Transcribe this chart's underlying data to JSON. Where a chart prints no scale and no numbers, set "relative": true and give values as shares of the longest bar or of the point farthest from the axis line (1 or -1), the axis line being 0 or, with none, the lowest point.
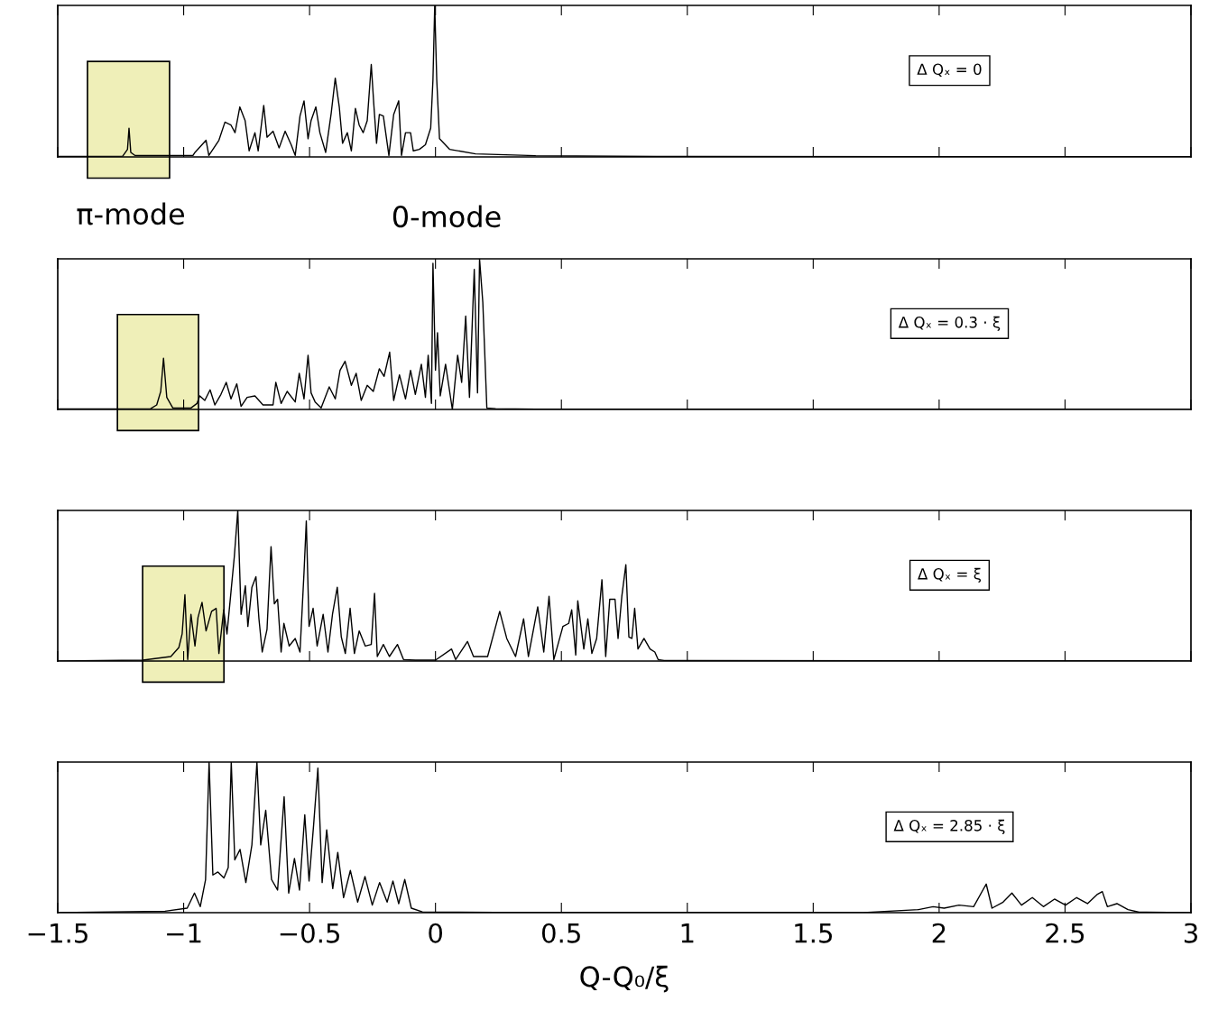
{
  "chart_data": [
    {
      "type": "line",
      "relative": true,
      "xlim": [
        -1.5,
        3
      ],
      "xticks": [
        -1.5,
        -1,
        -0.5,
        0,
        0.5,
        1,
        1.5,
        2,
        2.5,
        3
      ],
      "tick_labels": false,
      "grid": false,
      "legend": false,
      "annotations": [
        "Δ Qₓ = 0",
        "π-mode",
        "0-mode"
      ],
      "bands": [
        {
          "axis": "x",
          "from": -1.382,
          "to": -1.056,
          "color": "#efefb8"
        }
      ],
      "series": [
        {
          "color": "#000000",
          "x": [
            -1.5,
            -1.242,
            -1.223,
            -1.217,
            -1.21,
            -1.194,
            -0.963,
            -0.955,
            -0.911,
            -0.9,
            -0.86,
            -0.836,
            -0.812,
            -0.796,
            -0.777,
            -0.756,
            -0.74,
            -0.717,
            -0.704,
            -0.682,
            -0.669,
            -0.645,
            -0.621,
            -0.597,
            -0.573,
            -0.557,
            -0.538,
            -0.522,
            -0.506,
            -0.494,
            -0.475,
            -0.459,
            -0.436,
            -0.414,
            -0.398,
            -0.382,
            -0.369,
            -0.35,
            -0.334,
            -0.318,
            -0.303,
            -0.287,
            -0.271,
            -0.255,
            -0.245,
            -0.234,
            -0.223,
            -0.207,
            -0.185,
            -0.166,
            -0.146,
            -0.135,
            -0.119,
            -0.099,
            -0.088,
            -0.064,
            -0.04,
            -0.019,
            -0.01,
            -0.003,
            0.005,
            0.016,
            0.056,
            0.159,
            0.398,
            0.876,
            3
          ],
          "values": [
            0.004,
            0.005,
            0.05,
            0.19,
            0.03,
            0.01,
            0.01,
            0.03,
            0.11,
            0.01,
            0.11,
            0.23,
            0.21,
            0.16,
            0.33,
            0.24,
            0.04,
            0.16,
            0.04,
            0.34,
            0.13,
            0.17,
            0.06,
            0.17,
            0.08,
            0.01,
            0.27,
            0.37,
            0.12,
            0.24,
            0.33,
            0.16,
            0.03,
            0.29,
            0.52,
            0.33,
            0.09,
            0.16,
            0.04,
            0.32,
            0.21,
            0.16,
            0.24,
            0.61,
            0.35,
            0.09,
            0.28,
            0.27,
            0.01,
            0.28,
            0.37,
            0.01,
            0.16,
            0.16,
            0.04,
            0.05,
            0.08,
            0.19,
            0.51,
            1,
            0.51,
            0.12,
            0.05,
            0.02,
            0.008,
            0.003,
            0.002
          ]
        }
      ]
    },
    {
      "type": "line",
      "relative": true,
      "xlim": [
        -1.5,
        3
      ],
      "xticks": [
        -1.5,
        -1,
        -0.5,
        0,
        0.5,
        1,
        1.5,
        2,
        2.5,
        3
      ],
      "tick_labels": false,
      "grid": false,
      "legend": false,
      "annotations": [
        "Δ Qₓ = 0.3 · ξ"
      ],
      "bands": [
        {
          "axis": "x",
          "from": -1.263,
          "to": -0.941,
          "color": "#efefb8"
        }
      ],
      "series": [
        {
          "color": "#000000",
          "x": [
            -1.5,
            -1.131,
            -1.107,
            -1.091,
            -1.08,
            -1.067,
            -1.043,
            -0.971,
            -0.947,
            -0.936,
            -0.916,
            -0.895,
            -0.876,
            -0.852,
            -0.831,
            -0.812,
            -0.789,
            -0.772,
            -0.748,
            -0.717,
            -0.685,
            -0.645,
            -0.634,
            -0.613,
            -0.589,
            -0.557,
            -0.541,
            -0.522,
            -0.506,
            -0.494,
            -0.478,
            -0.454,
            -0.422,
            -0.398,
            -0.379,
            -0.359,
            -0.334,
            -0.315,
            -0.295,
            -0.271,
            -0.247,
            -0.223,
            -0.204,
            -0.182,
            -0.166,
            -0.143,
            -0.119,
            -0.099,
            -0.08,
            -0.056,
            -0.04,
            -0.029,
            -0.016,
            -0.01,
            0.0,
            0.008,
            0.019,
            0.04,
            0.067,
            0.088,
            0.104,
            0.12,
            0.135,
            0.154,
            0.167,
            0.175,
            0.188,
            0.204,
            0.239,
            0.398,
            3
          ],
          "values": [
            0.003,
            0.005,
            0.03,
            0.12,
            0.34,
            0.08,
            0.01,
            0.01,
            0.04,
            0.09,
            0.06,
            0.13,
            0.03,
            0.1,
            0.18,
            0.07,
            0.17,
            0.02,
            0.08,
            0.09,
            0.03,
            0.03,
            0.18,
            0.04,
            0.12,
            0.05,
            0.24,
            0.07,
            0.36,
            0.11,
            0.05,
            0.01,
            0.15,
            0.07,
            0.26,
            0.32,
            0.16,
            0.24,
            0.06,
            0.16,
            0.12,
            0.27,
            0.22,
            0.38,
            0.06,
            0.23,
            0.07,
            0.26,
            0.1,
            0.3,
            0.08,
            0.36,
            0.04,
            0.97,
            0.26,
            0.51,
            0.09,
            0.3,
            0.0,
            0.36,
            0.18,
            0.62,
            0.08,
            0.93,
            0.11,
            1,
            0.71,
            0.01,
            0.005,
            0.002,
            0.001
          ]
        }
      ]
    },
    {
      "type": "line",
      "relative": true,
      "xlim": [
        -1.5,
        3
      ],
      "xticks": [
        -1.5,
        -1,
        -0.5,
        0,
        0.5,
        1,
        1.5,
        2,
        2.5,
        3
      ],
      "tick_labels": false,
      "grid": false,
      "legend": false,
      "annotations": [
        "Δ Qₓ = ξ"
      ],
      "bands": [
        {
          "axis": "x",
          "from": -1.163,
          "to": -0.84,
          "color": "#efefb8"
        }
      ],
      "series": [
        {
          "color": "#000000",
          "x": [
            -1.5,
            -1.162,
            -1.051,
            -1.019,
            -1.006,
            -0.995,
            -0.984,
            -0.971,
            -0.955,
            -0.943,
            -0.927,
            -0.911,
            -0.889,
            -0.871,
            -0.86,
            -0.841,
            -0.828,
            -0.812,
            -0.799,
            -0.785,
            -0.772,
            -0.755,
            -0.745,
            -0.729,
            -0.713,
            -0.701,
            -0.688,
            -0.669,
            -0.653,
            -0.64,
            -0.627,
            -0.613,
            -0.602,
            -0.581,
            -0.557,
            -0.538,
            -0.522,
            -0.513,
            -0.502,
            -0.486,
            -0.47,
            -0.446,
            -0.427,
            -0.409,
            -0.39,
            -0.374,
            -0.358,
            -0.339,
            -0.322,
            -0.303,
            -0.279,
            -0.255,
            -0.242,
            -0.231,
            -0.207,
            -0.183,
            -0.151,
            -0.127,
            -0.08,
            0.0,
            0.064,
            0.08,
            0.127,
            0.151,
            0.207,
            0.255,
            0.283,
            0.318,
            0.35,
            0.369,
            0.406,
            0.43,
            0.451,
            0.47,
            0.506,
            0.529,
            0.541,
            0.557,
            0.565,
            0.589,
            0.605,
            0.621,
            0.64,
            0.661,
            0.676,
            0.692,
            0.713,
            0.725,
            0.74,
            0.756,
            0.768,
            0.78,
            0.791,
            0.804,
            0.828,
            0.852,
            0.871,
            0.884,
            0.908,
            3
          ],
          "values": [
            0.0,
            0.006,
            0.03,
            0.09,
            0.18,
            0.44,
            0.01,
            0.31,
            0.1,
            0.29,
            0.39,
            0.2,
            0.33,
            0.35,
            0.05,
            0.34,
            0.18,
            0.46,
            0.69,
            1,
            0.31,
            0.5,
            0.23,
            0.49,
            0.56,
            0.28,
            0.06,
            0.21,
            0.76,
            0.38,
            0.41,
            0.06,
            0.25,
            0.1,
            0.15,
            0.06,
            0.59,
            0.93,
            0.23,
            0.35,
            0.1,
            0.31,
            0.06,
            0.31,
            0.49,
            0.16,
            0.05,
            0.35,
            0.05,
            0.2,
            0.1,
            0.11,
            0.45,
            0.03,
            0.11,
            0.03,
            0.11,
            0.01,
            0.006,
            0.006,
            0.08,
            0.01,
            0.13,
            0.03,
            0.03,
            0.33,
            0.15,
            0.03,
            0.28,
            0.03,
            0.36,
            0.06,
            0.43,
            0.01,
            0.23,
            0.25,
            0.34,
            0.04,
            0.4,
            0.08,
            0.28,
            0.05,
            0.15,
            0.54,
            0.03,
            0.41,
            0.41,
            0.15,
            0.43,
            0.64,
            0.16,
            0.15,
            0.35,
            0.08,
            0.15,
            0.08,
            0.06,
            0.01,
            0.004,
            0.001
          ]
        }
      ]
    },
    {
      "type": "line",
      "relative": true,
      "xlim": [
        -1.5,
        3
      ],
      "xticks": [
        -1.5,
        -1,
        -0.5,
        0,
        0.5,
        1,
        1.5,
        2,
        2.5,
        3
      ],
      "tick_labels": "x",
      "grid": false,
      "legend": false,
      "xlabel": "Q-Q₀/ξ",
      "annotations": [
        "Δ Qₓ = 2.85 · ξ"
      ],
      "series": [
        {
          "color": "#000000",
          "x": [
            -1.5,
            -1.074,
            -0.986,
            -0.957,
            -0.934,
            -0.913,
            -0.899,
            -0.884,
            -0.864,
            -0.84,
            -0.823,
            -0.811,
            -0.797,
            -0.776,
            -0.753,
            -0.729,
            -0.709,
            -0.694,
            -0.674,
            -0.651,
            -0.627,
            -0.601,
            -0.583,
            -0.56,
            -0.54,
            -0.519,
            -0.502,
            -0.484,
            -0.467,
            -0.45,
            -0.432,
            -0.408,
            -0.388,
            -0.365,
            -0.338,
            -0.309,
            -0.28,
            -0.251,
            -0.222,
            -0.192,
            -0.169,
            -0.146,
            -0.122,
            -0.096,
            -0.052,
            0.24,
            1.699,
            1.918,
            1.976,
            2.02,
            2.079,
            2.137,
            2.187,
            2.21,
            2.254,
            2.289,
            2.327,
            2.37,
            2.414,
            2.458,
            2.502,
            2.546,
            2.589,
            2.627,
            2.648,
            2.668,
            2.706,
            2.75,
            2.794,
            3
          ],
          "values": [
            0.0,
            0.01,
            0.03,
            0.13,
            0.04,
            0.22,
            1,
            0.25,
            0.27,
            0.23,
            0.3,
            1,
            0.35,
            0.42,
            0.2,
            0.45,
            1,
            0.45,
            0.68,
            0.22,
            0.15,
            0.77,
            0.13,
            0.36,
            0.15,
            0.65,
            0.21,
            0.58,
            0.96,
            0.2,
            0.55,
            0.16,
            0.4,
            0.1,
            0.28,
            0.07,
            0.24,
            0.05,
            0.2,
            0.07,
            0.21,
            0.06,
            0.22,
            0.03,
            0.005,
            0.002,
            0.001,
            0.02,
            0.04,
            0.03,
            0.05,
            0.04,
            0.19,
            0.03,
            0.07,
            0.13,
            0.05,
            0.1,
            0.04,
            0.09,
            0.05,
            0.1,
            0.06,
            0.12,
            0.14,
            0.04,
            0.06,
            0.02,
            0.003,
            0.001
          ]
        }
      ]
    }
  ]
}
